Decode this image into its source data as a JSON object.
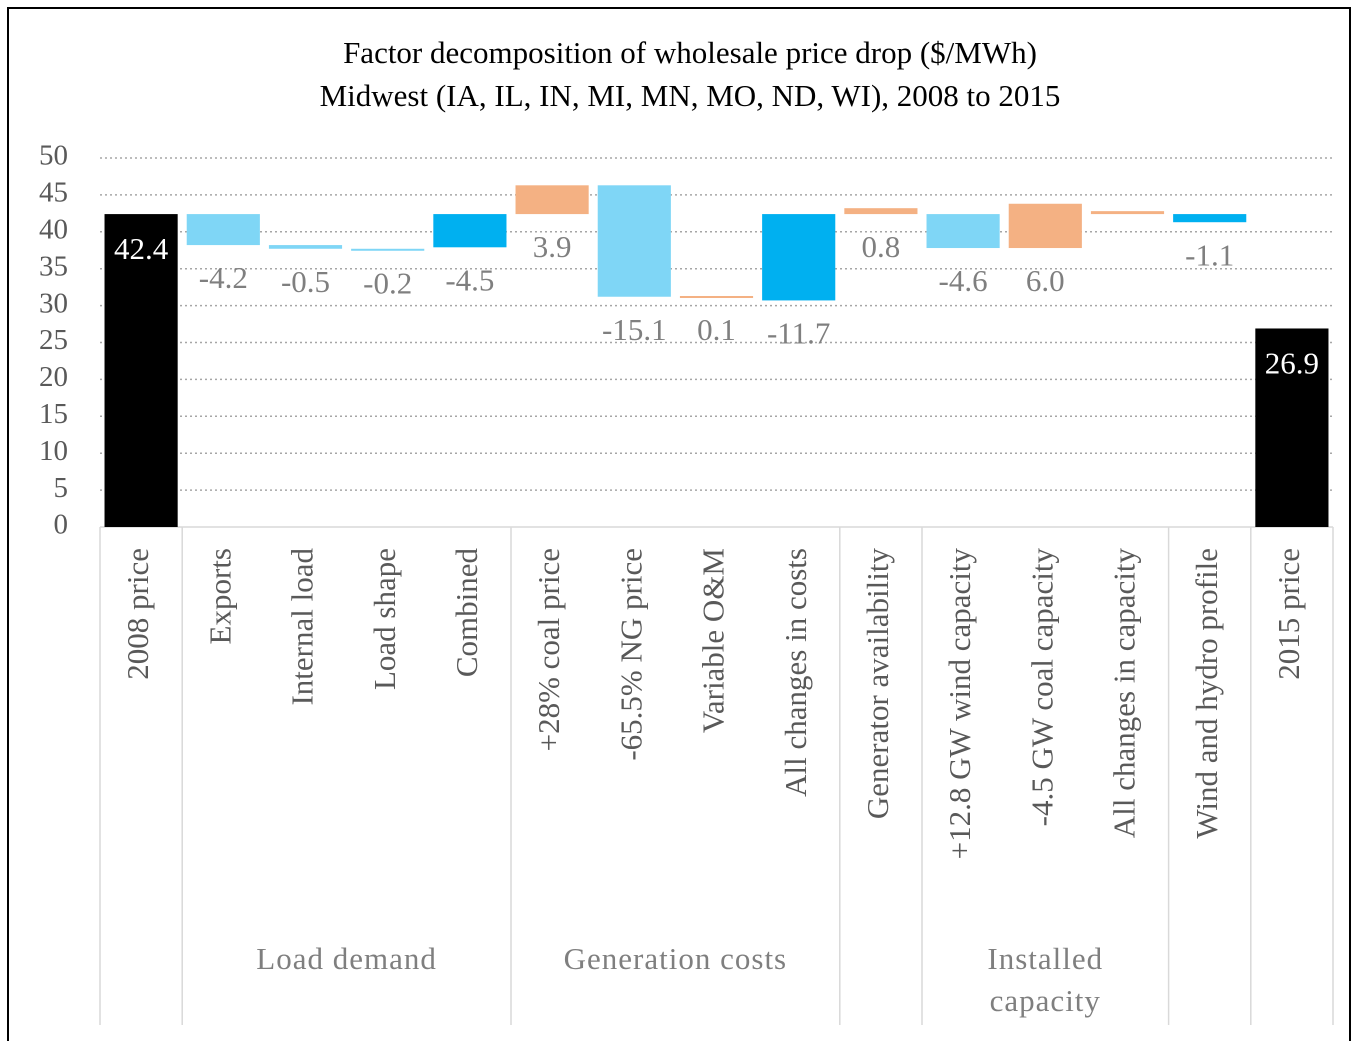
{
  "chart_data": {
    "type": "waterfall",
    "title": "Factor decomposition of wholesale price drop ($/MWh)",
    "subtitle": "Midwest (IA, IL, IN, MI, MN, MO, ND, WI), 2008  to 2015",
    "groups": [
      {
        "categories": [
          "2008 price"
        ],
        "values": [
          42.4
        ],
        "value_labels": [
          "42.4"
        ]
      },
      {
        "name": "Load demand",
        "categories": [
          "Exports",
          "Internal load",
          "Load shape",
          "Combined"
        ],
        "values": [
          -4.2,
          -0.5,
          -0.2,
          -4.5
        ],
        "value_labels": [
          "-4.2",
          "-0.5",
          "-0.2",
          "-4.5"
        ]
      },
      {
        "name": "Generation costs",
        "categories": [
          "+28% coal price",
          "-65.5% NG price",
          "Variable O&M",
          "All changes in costs"
        ],
        "values": [
          3.9,
          -15.1,
          0.1,
          -11.7
        ],
        "value_labels": [
          "3.9",
          "-15.1",
          "0.1",
          "-11.7"
        ]
      },
      {
        "categories": [
          "Generator availability"
        ],
        "values": [
          0.8
        ],
        "value_labels": [
          "0.8"
        ]
      },
      {
        "name": "Installed capacity",
        "categories": [
          "+12.8 GW wind capacity",
          "-4.5 GW coal capacity",
          "All changes in capacity"
        ],
        "values": [
          -4.6,
          6.0,
          0.4
        ],
        "value_labels": [
          "-4.6",
          "6.0",
          null
        ]
      },
      {
        "categories": [
          "Wind and hydro profile"
        ],
        "values": [
          -1.1
        ],
        "value_labels": [
          "-1.1"
        ]
      },
      {
        "categories": [
          "2015 price"
        ],
        "values": [
          26.9
        ],
        "value_labels": [
          "26.9"
        ]
      }
    ],
    "colors": {
      "total": "#000000",
      "increase": "#f4b183",
      "decrease": "#7fd6f6",
      "combined": "#00b0f0"
    },
    "ylim": [
      0,
      50
    ],
    "yticks": [
      0,
      5,
      10,
      15,
      20,
      25,
      30,
      35,
      40,
      45,
      50
    ],
    "grid": true
  }
}
